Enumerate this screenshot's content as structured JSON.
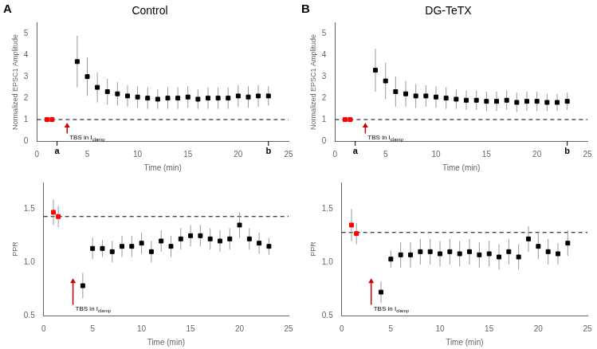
{
  "chart_data": [
    {
      "type": "scatter",
      "title": "Control",
      "panel_label": "A",
      "x_label": "Time (min)",
      "y_label": "Normalized EPSC1 Amplitude",
      "xlim": [
        0,
        25
      ],
      "xticks": [
        0,
        5,
        10,
        15,
        20,
        25
      ],
      "ylim": [
        0,
        5.5
      ],
      "yticks": [
        0,
        1,
        2,
        3,
        4,
        5
      ],
      "grid": false,
      "marker": "square",
      "series": [
        {
          "color": "red",
          "x": [
            1.0,
            1.5
          ],
          "values": [
            1.0,
            1.0
          ],
          "errors": [
            0.04,
            0.04
          ]
        },
        {
          "color": "black",
          "x": [
            4,
            5,
            6,
            7,
            8,
            9,
            10,
            11,
            12,
            13,
            14,
            15,
            16,
            17,
            18,
            19,
            20,
            21,
            22,
            23
          ],
          "values": [
            3.7,
            3.0,
            2.5,
            2.3,
            2.2,
            2.1,
            2.05,
            2.0,
            1.95,
            2.0,
            2.0,
            2.05,
            1.95,
            2.0,
            2.0,
            2.0,
            2.1,
            2.05,
            2.1,
            2.1
          ],
          "errors": [
            1.2,
            0.9,
            0.7,
            0.6,
            0.55,
            0.5,
            0.5,
            0.5,
            0.45,
            0.5,
            0.5,
            0.5,
            0.45,
            0.5,
            0.5,
            0.5,
            0.5,
            0.5,
            0.5,
            0.45
          ]
        }
      ],
      "baseline": {
        "y": 1.0,
        "line_style": "dashed",
        "color": "black"
      },
      "arrow": {
        "x": 3.0,
        "y_from": 0.35,
        "y_to": 0.85,
        "color": "#cc0000",
        "text": "TBS in I",
        "subscript": "clamp"
      },
      "x_markers": [
        {
          "x": 2.0,
          "text": "a"
        },
        {
          "x": 23.0,
          "text": "b"
        }
      ]
    },
    {
      "type": "scatter",
      "title": "DG-TeTX",
      "panel_label": "B",
      "x_label": "Time (min)",
      "y_label": "Normalized EPSC1 Amplitude",
      "xlim": [
        0,
        25
      ],
      "xticks": [
        0,
        5,
        10,
        15,
        20,
        25
      ],
      "ylim": [
        0,
        5.5
      ],
      "yticks": [
        0,
        1,
        2,
        3,
        4,
        5
      ],
      "grid": false,
      "marker": "square",
      "series": [
        {
          "color": "red",
          "x": [
            1.0,
            1.5
          ],
          "values": [
            1.0,
            1.0
          ],
          "errors": [
            0.04,
            0.04
          ]
        },
        {
          "color": "black",
          "x": [
            4,
            5,
            6,
            7,
            8,
            9,
            10,
            11,
            12,
            13,
            14,
            15,
            16,
            17,
            18,
            19,
            20,
            21,
            22,
            23
          ],
          "values": [
            3.3,
            2.8,
            2.3,
            2.2,
            2.1,
            2.1,
            2.05,
            2.0,
            1.95,
            1.9,
            1.9,
            1.85,
            1.85,
            1.9,
            1.8,
            1.85,
            1.85,
            1.8,
            1.8,
            1.85
          ],
          "errors": [
            1.0,
            0.85,
            0.7,
            0.6,
            0.55,
            0.5,
            0.5,
            0.5,
            0.45,
            0.45,
            0.45,
            0.45,
            0.45,
            0.45,
            0.45,
            0.45,
            0.45,
            0.4,
            0.4,
            0.4
          ]
        }
      ],
      "baseline": {
        "y": 1.0,
        "line_style": "dashed",
        "color": "black"
      },
      "arrow": {
        "x": 3.0,
        "y_from": 0.35,
        "y_to": 0.85,
        "color": "#cc0000",
        "text": "TBS in I",
        "subscript": "clamp"
      },
      "x_markers": [
        {
          "x": 2.0,
          "text": "a"
        },
        {
          "x": 23.0,
          "text": "b"
        }
      ]
    },
    {
      "type": "scatter",
      "x_label": "Time (min)",
      "y_label": "PPR",
      "xlim": [
        0,
        25
      ],
      "xticks": [
        0,
        5,
        10,
        15,
        20,
        25
      ],
      "ylim": [
        0.5,
        1.75
      ],
      "yticks": [
        0.5,
        {
          "value": 1.0,
          "label": "1.0"
        },
        1.5
      ],
      "grid": false,
      "marker": "square",
      "series": [
        {
          "color": "red",
          "x": [
            1.0,
            1.5
          ],
          "values": [
            1.47,
            1.43
          ],
          "errors": [
            0.12,
            0.1
          ]
        },
        {
          "color": "black",
          "x": [
            4,
            5,
            6,
            7,
            8,
            9,
            10,
            11,
            12,
            13,
            14,
            15,
            16,
            17,
            18,
            19,
            20,
            21,
            22,
            23
          ],
          "values": [
            0.78,
            1.13,
            1.13,
            1.1,
            1.15,
            1.15,
            1.18,
            1.1,
            1.2,
            1.15,
            1.22,
            1.25,
            1.25,
            1.22,
            1.2,
            1.22,
            1.35,
            1.22,
            1.18,
            1.15
          ],
          "errors": [
            0.12,
            0.1,
            0.08,
            0.1,
            0.1,
            0.1,
            0.1,
            0.1,
            0.1,
            0.1,
            0.1,
            0.1,
            0.1,
            0.1,
            0.1,
            0.1,
            0.12,
            0.1,
            0.1,
            0.08
          ]
        }
      ],
      "baseline": {
        "y": 1.43,
        "line_style": "dashed",
        "color": "black"
      },
      "arrow": {
        "x": 3.0,
        "y_from": 0.6,
        "y_to": 0.85,
        "color": "#cc0000",
        "text": "TBS in I",
        "subscript": "clamp"
      }
    },
    {
      "type": "scatter",
      "x_label": "Time (min)",
      "y_label": "PPR",
      "xlim": [
        0,
        25
      ],
      "xticks": [
        0,
        5,
        10,
        15,
        20,
        25
      ],
      "ylim": [
        0.5,
        1.75
      ],
      "yticks": [
        0.5,
        {
          "value": 1.0,
          "label": "1.0"
        },
        1.5
      ],
      "grid": false,
      "marker": "square",
      "series": [
        {
          "color": "red",
          "x": [
            1.0,
            1.5
          ],
          "values": [
            1.35,
            1.27
          ],
          "errors": [
            0.15,
            0.1
          ]
        },
        {
          "color": "black",
          "x": [
            4,
            5,
            6,
            7,
            8,
            9,
            10,
            11,
            12,
            13,
            14,
            15,
            16,
            17,
            18,
            19,
            20,
            21,
            22,
            23
          ],
          "values": [
            0.72,
            1.03,
            1.07,
            1.07,
            1.1,
            1.1,
            1.08,
            1.1,
            1.08,
            1.1,
            1.07,
            1.08,
            1.05,
            1.1,
            1.05,
            1.22,
            1.15,
            1.1,
            1.08,
            1.18
          ],
          "errors": [
            0.1,
            0.08,
            0.12,
            0.12,
            0.12,
            0.12,
            0.12,
            0.12,
            0.12,
            0.12,
            0.12,
            0.12,
            0.12,
            0.12,
            0.12,
            0.12,
            0.12,
            0.12,
            0.1,
            0.12
          ]
        }
      ],
      "baseline": {
        "y": 1.28,
        "line_style": "dashed",
        "color": "black"
      },
      "arrow": {
        "x": 3.0,
        "y_from": 0.6,
        "y_to": 0.85,
        "color": "#cc0000",
        "text": "TBS in I",
        "subscript": "clamp"
      }
    }
  ]
}
